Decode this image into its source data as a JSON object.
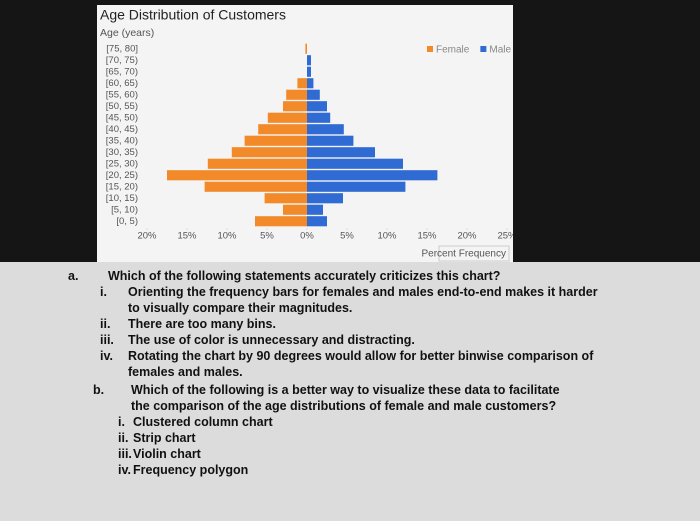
{
  "chart_data": {
    "type": "bar",
    "title": "Age Distribution of Customers",
    "y_label": "Age (years)",
    "x_label": "Percent Frequency",
    "categories": [
      "[75, 80]",
      "[70, 75)",
      "[65, 70)",
      "[60, 65)",
      "[55, 60)",
      "[50, 55)",
      "[45, 50)",
      "[40, 45)",
      "[35, 40)",
      "[30, 35)",
      "[25, 30)",
      "[20, 25)",
      "[15, 20)",
      "[10, 15)",
      "[5, 10)",
      "[0, 5)"
    ],
    "series": [
      {
        "name": "Female",
        "color": "#f28a2a",
        "values": [
          -0.2,
          0,
          0,
          -1.2,
          -2.6,
          -3,
          -4.9,
          -6.1,
          -7.8,
          -9.4,
          -12.4,
          -17.5,
          -12.8,
          -5.3,
          -3,
          -6.5
        ]
      },
      {
        "name": "Male",
        "color": "#2f6bd3",
        "values": [
          0,
          0.5,
          0.5,
          0.8,
          1.6,
          2.5,
          2.9,
          4.6,
          5.8,
          8.5,
          12,
          16.3,
          12.3,
          4.5,
          2,
          2.5
        ]
      }
    ],
    "xlim": [
      -22,
      25.5
    ],
    "xticks": [
      {
        "value": -20,
        "label": "20%"
      },
      {
        "value": -15,
        "label": "15%"
      },
      {
        "value": -10,
        "label": "10%"
      },
      {
        "value": -5,
        "label": "5%"
      },
      {
        "value": 0,
        "label": "0%"
      },
      {
        "value": 5,
        "label": "5%"
      },
      {
        "value": 10,
        "label": "10%"
      },
      {
        "value": 15,
        "label": "15%"
      },
      {
        "value": 20,
        "label": "20%"
      },
      {
        "value": 25,
        "label": "25%"
      }
    ],
    "legend": "upper right",
    "grid": false
  },
  "questions": [
    {
      "label": "a.",
      "text": "Which of the following statements accurately criticizes this chart?",
      "options": [
        {
          "label": "i.",
          "text": "Orienting the frequency bars for females and males end-to-end makes it harder to visually compare their magnitudes."
        },
        {
          "label": "ii.",
          "text": "There are too many bins."
        },
        {
          "label": "iii.",
          "text": "The use of color is unnecessary and distracting."
        },
        {
          "label": "iv.",
          "text": "Rotating the chart by 90 degrees would allow for better binwise comparison of females and males."
        }
      ]
    },
    {
      "label": "b.",
      "text": "Which of the following is a better way to visualize these data to facilitate the comparison of the age distributions of female and male customers?",
      "options": [
        {
          "label": "i.",
          "text": "Clustered column chart"
        },
        {
          "label": "ii.",
          "text": "Strip chart"
        },
        {
          "label": "iii.",
          "text": "Violin chart"
        },
        {
          "label": "iv.",
          "text": "Frequency polygon"
        }
      ]
    }
  ]
}
